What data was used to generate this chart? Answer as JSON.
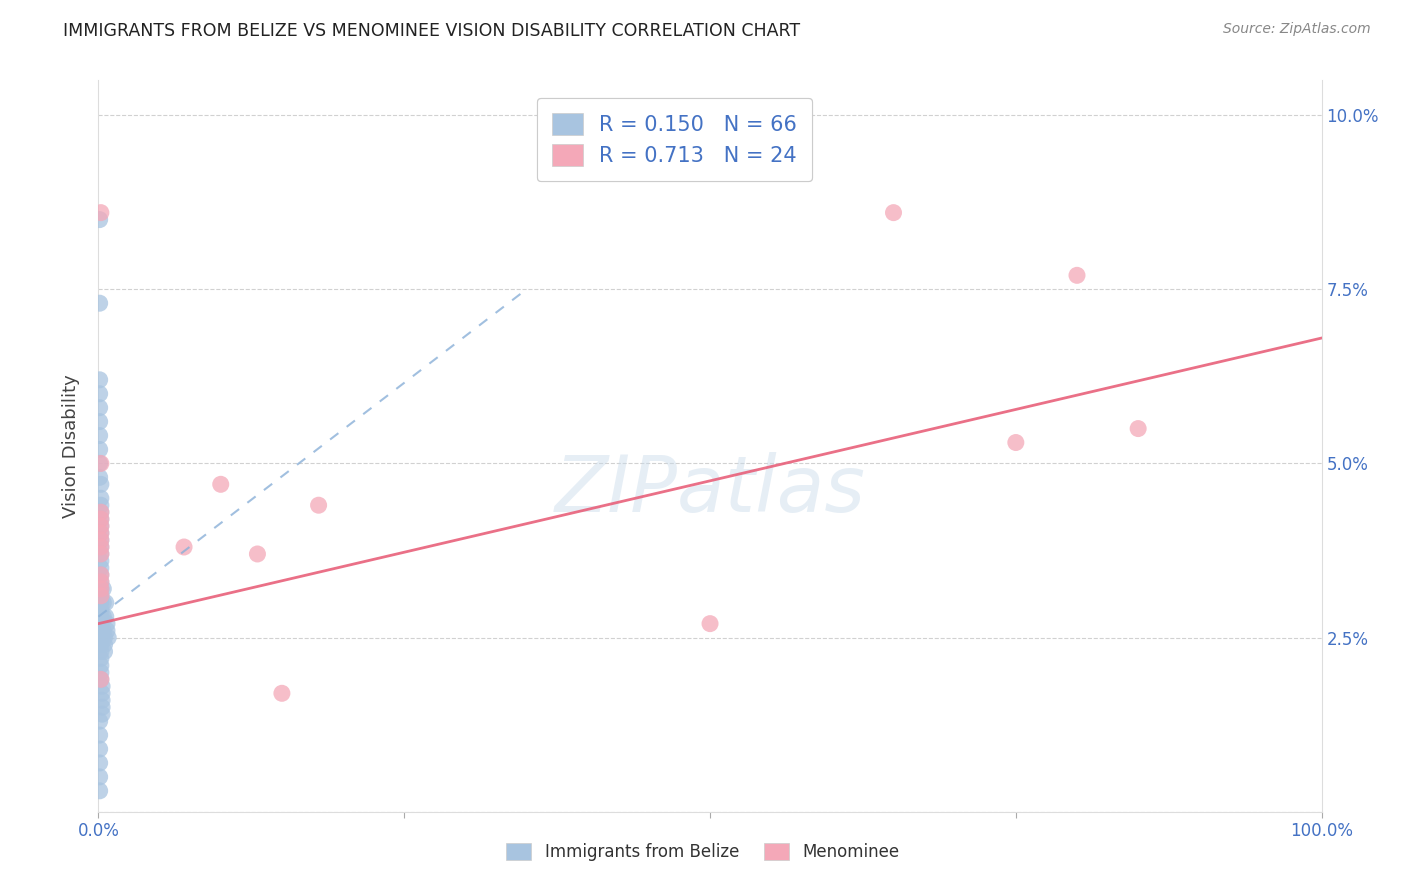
{
  "title": "IMMIGRANTS FROM BELIZE VS MENOMINEE VISION DISABILITY CORRELATION CHART",
  "source": "Source: ZipAtlas.com",
  "ylabel": "Vision Disability",
  "xlim": [
    0,
    1.0
  ],
  "ylim": [
    0,
    0.105
  ],
  "xticks": [
    0,
    0.25,
    0.5,
    0.75,
    1.0
  ],
  "xticklabels": [
    "0.0%",
    "",
    "",
    "",
    "100.0%"
  ],
  "yticks": [
    0,
    0.025,
    0.05,
    0.075,
    0.1
  ],
  "yticklabels": [
    "",
    "2.5%",
    "5.0%",
    "7.5%",
    "10.0%"
  ],
  "blue_R": 0.15,
  "blue_N": 66,
  "pink_R": 0.713,
  "pink_N": 24,
  "blue_color": "#a8c4e0",
  "pink_color": "#f4a8b8",
  "blue_line_color": "#8ab0d8",
  "pink_line_color": "#e8607a",
  "blue_scatter": [
    [
      0.001,
      0.085
    ],
    [
      0.001,
      0.073
    ],
    [
      0.001,
      0.062
    ],
    [
      0.001,
      0.06
    ],
    [
      0.001,
      0.058
    ],
    [
      0.001,
      0.056
    ],
    [
      0.001,
      0.054
    ],
    [
      0.001,
      0.052
    ],
    [
      0.001,
      0.05
    ],
    [
      0.001,
      0.048
    ],
    [
      0.002,
      0.047
    ],
    [
      0.002,
      0.045
    ],
    [
      0.002,
      0.044
    ],
    [
      0.002,
      0.043
    ],
    [
      0.002,
      0.042
    ],
    [
      0.002,
      0.041
    ],
    [
      0.002,
      0.04
    ],
    [
      0.002,
      0.039
    ],
    [
      0.002,
      0.038
    ],
    [
      0.002,
      0.037
    ],
    [
      0.002,
      0.036
    ],
    [
      0.002,
      0.035
    ],
    [
      0.002,
      0.034
    ],
    [
      0.002,
      0.033
    ],
    [
      0.002,
      0.032
    ],
    [
      0.002,
      0.031
    ],
    [
      0.002,
      0.03
    ],
    [
      0.002,
      0.029
    ],
    [
      0.002,
      0.028
    ],
    [
      0.002,
      0.027
    ],
    [
      0.002,
      0.026
    ],
    [
      0.002,
      0.025
    ],
    [
      0.002,
      0.024
    ],
    [
      0.002,
      0.023
    ],
    [
      0.002,
      0.022
    ],
    [
      0.002,
      0.021
    ],
    [
      0.002,
      0.02
    ],
    [
      0.002,
      0.019
    ],
    [
      0.003,
      0.018
    ],
    [
      0.003,
      0.017
    ],
    [
      0.003,
      0.016
    ],
    [
      0.003,
      0.015
    ],
    [
      0.003,
      0.014
    ],
    [
      0.004,
      0.032
    ],
    [
      0.004,
      0.03
    ],
    [
      0.004,
      0.028
    ],
    [
      0.004,
      0.026
    ],
    [
      0.005,
      0.025
    ],
    [
      0.005,
      0.024
    ],
    [
      0.005,
      0.023
    ],
    [
      0.006,
      0.03
    ],
    [
      0.006,
      0.028
    ],
    [
      0.007,
      0.027
    ],
    [
      0.007,
      0.026
    ],
    [
      0.008,
      0.025
    ],
    [
      0.001,
      0.013
    ],
    [
      0.001,
      0.011
    ],
    [
      0.001,
      0.009
    ],
    [
      0.001,
      0.007
    ],
    [
      0.001,
      0.005
    ],
    [
      0.001,
      0.003
    ],
    [
      0.001,
      0.032
    ],
    [
      0.001,
      0.031
    ],
    [
      0.001,
      0.03
    ],
    [
      0.001,
      0.029
    ],
    [
      0.001,
      0.028
    ],
    [
      0.001,
      0.027
    ]
  ],
  "pink_scatter": [
    [
      0.002,
      0.086
    ],
    [
      0.65,
      0.086
    ],
    [
      0.8,
      0.077
    ],
    [
      0.002,
      0.05
    ],
    [
      0.1,
      0.047
    ],
    [
      0.18,
      0.044
    ],
    [
      0.07,
      0.038
    ],
    [
      0.13,
      0.037
    ],
    [
      0.002,
      0.043
    ],
    [
      0.002,
      0.042
    ],
    [
      0.002,
      0.041
    ],
    [
      0.002,
      0.04
    ],
    [
      0.002,
      0.039
    ],
    [
      0.002,
      0.038
    ],
    [
      0.002,
      0.037
    ],
    [
      0.002,
      0.034
    ],
    [
      0.002,
      0.033
    ],
    [
      0.002,
      0.032
    ],
    [
      0.002,
      0.031
    ],
    [
      0.5,
      0.027
    ],
    [
      0.75,
      0.053
    ],
    [
      0.85,
      0.055
    ],
    [
      0.002,
      0.019
    ],
    [
      0.15,
      0.017
    ]
  ],
  "blue_line_x": [
    0.0,
    0.35
  ],
  "blue_line_y": [
    0.028,
    0.075
  ],
  "pink_line_x": [
    0.0,
    1.0
  ],
  "pink_line_y": [
    0.027,
    0.068
  ],
  "watermark_text": "ZIPatlas",
  "legend_entries": [
    "Immigrants from Belize",
    "Menominee"
  ]
}
